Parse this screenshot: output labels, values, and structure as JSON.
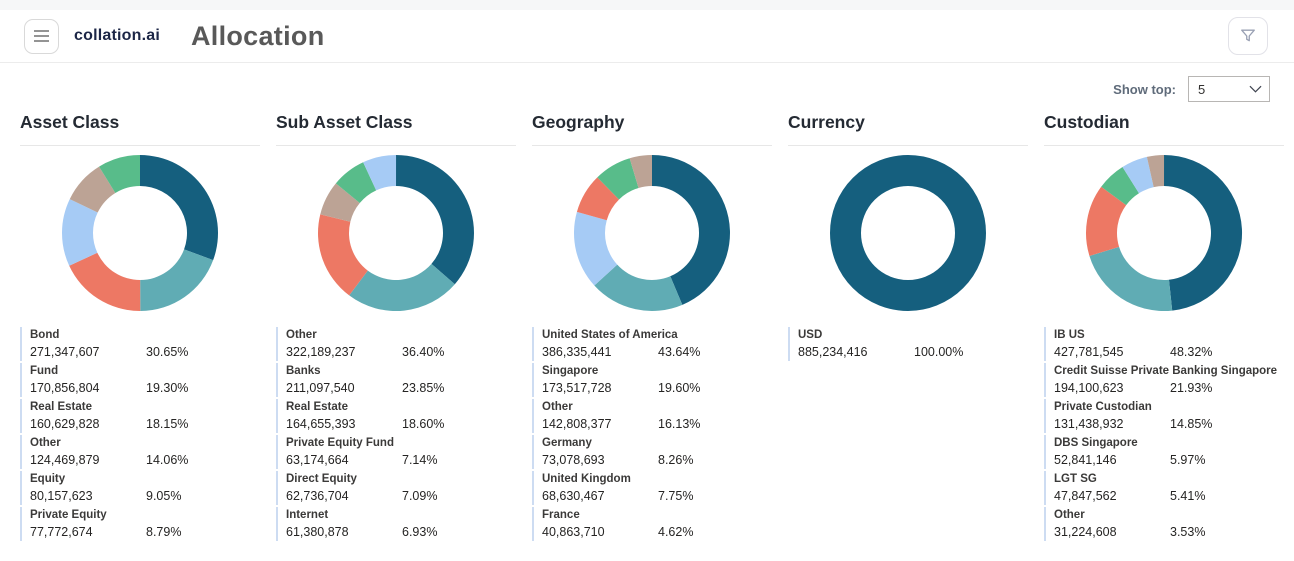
{
  "header": {
    "logo": "collation.ai",
    "title": "Allocation"
  },
  "icons": {
    "menu": "hamburger",
    "filter": "funnel",
    "dropdown": "chevron-down"
  },
  "controls": {
    "show_top_label": "Show top:",
    "show_top_value": "5"
  },
  "palette": {
    "dark_blue": "#155F7E",
    "teal": "#60ACB4",
    "salmon": "#ED7864",
    "light_blue": "#A6CBF5",
    "tan": "#BCA395",
    "green": "#58BC8A"
  },
  "chart_data": [
    {
      "type": "pie",
      "title": "Asset Class",
      "hole_ratio": 0.6,
      "start_angle": "top",
      "direction": "clockwise",
      "legend_position": "below-as-table",
      "series": [
        {
          "label": "Bond",
          "value": "271,347,607",
          "pct": 30.65,
          "pct_label": "30.65%",
          "color": "#155F7E"
        },
        {
          "label": "Fund",
          "value": "170,856,804",
          "pct": 19.3,
          "pct_label": "19.30%",
          "color": "#60ACB4"
        },
        {
          "label": "Real Estate",
          "value": "160,629,828",
          "pct": 18.15,
          "pct_label": "18.15%",
          "color": "#ED7864"
        },
        {
          "label": "Other",
          "value": "124,469,879",
          "pct": 14.06,
          "pct_label": "14.06%",
          "color": "#A6CBF5"
        },
        {
          "label": "Equity",
          "value": "80,157,623",
          "pct": 9.05,
          "pct_label": "9.05%",
          "color": "#BCA395"
        },
        {
          "label": "Private Equity",
          "value": "77,772,674",
          "pct": 8.79,
          "pct_label": "8.79%",
          "color": "#58BC8A"
        }
      ]
    },
    {
      "type": "pie",
      "title": "Sub Asset Class",
      "hole_ratio": 0.6,
      "start_angle": "top",
      "direction": "clockwise",
      "legend_position": "below-as-table",
      "series": [
        {
          "label": "Other",
          "value": "322,189,237",
          "pct": 36.4,
          "pct_label": "36.40%",
          "color": "#155F7E"
        },
        {
          "label": "Banks",
          "value": "211,097,540",
          "pct": 23.85,
          "pct_label": "23.85%",
          "color": "#60ACB4"
        },
        {
          "label": "Real Estate",
          "value": "164,655,393",
          "pct": 18.6,
          "pct_label": "18.60%",
          "color": "#ED7864"
        },
        {
          "label": "Private Equity Fund",
          "value": "63,174,664",
          "pct": 7.14,
          "pct_label": "7.14%",
          "color": "#BCA395"
        },
        {
          "label": "Direct Equity",
          "value": "62,736,704",
          "pct": 7.09,
          "pct_label": "7.09%",
          "color": "#58BC8A"
        },
        {
          "label": "Internet",
          "value": "61,380,878",
          "pct": 6.93,
          "pct_label": "6.93%",
          "color": "#A6CBF5"
        }
      ]
    },
    {
      "type": "pie",
      "title": "Geography",
      "hole_ratio": 0.6,
      "start_angle": "top",
      "direction": "clockwise",
      "legend_position": "below-as-table",
      "series": [
        {
          "label": "United States of America",
          "value": "386,335,441",
          "pct": 43.64,
          "pct_label": "43.64%",
          "color": "#155F7E"
        },
        {
          "label": "Singapore",
          "value": "173,517,728",
          "pct": 19.6,
          "pct_label": "19.60%",
          "color": "#60ACB4"
        },
        {
          "label": "Other",
          "value": "142,808,377",
          "pct": 16.13,
          "pct_label": "16.13%",
          "color": "#A6CBF5"
        },
        {
          "label": "Germany",
          "value": "73,078,693",
          "pct": 8.26,
          "pct_label": "8.26%",
          "color": "#ED7864"
        },
        {
          "label": "United Kingdom",
          "value": "68,630,467",
          "pct": 7.75,
          "pct_label": "7.75%",
          "color": "#58BC8A"
        },
        {
          "label": "France",
          "value": "40,863,710",
          "pct": 4.62,
          "pct_label": "4.62%",
          "color": "#BCA395"
        }
      ]
    },
    {
      "type": "pie",
      "title": "Currency",
      "hole_ratio": 0.6,
      "start_angle": "top",
      "direction": "clockwise",
      "legend_position": "below-as-table",
      "series": [
        {
          "label": "USD",
          "value": "885,234,416",
          "pct": 100.0,
          "pct_label": "100.00%",
          "color": "#155F7E"
        }
      ]
    },
    {
      "type": "pie",
      "title": "Custodian",
      "hole_ratio": 0.6,
      "start_angle": "top",
      "direction": "clockwise",
      "legend_position": "below-as-table",
      "series": [
        {
          "label": "IB US",
          "value": "427,781,545",
          "pct": 48.32,
          "pct_label": "48.32%",
          "color": "#155F7E"
        },
        {
          "label": "Credit Suisse Private Banking Singapore",
          "value": "194,100,623",
          "pct": 21.93,
          "pct_label": "21.93%",
          "color": "#60ACB4"
        },
        {
          "label": "Private Custodian",
          "value": "131,438,932",
          "pct": 14.85,
          "pct_label": "14.85%",
          "color": "#ED7864"
        },
        {
          "label": "DBS Singapore",
          "value": "52,841,146",
          "pct": 5.97,
          "pct_label": "5.97%",
          "color": "#58BC8A"
        },
        {
          "label": "LGT SG",
          "value": "47,847,562",
          "pct": 5.41,
          "pct_label": "5.41%",
          "color": "#A6CBF5"
        },
        {
          "label": "Other",
          "value": "31,224,608",
          "pct": 3.53,
          "pct_label": "3.53%",
          "color": "#BCA395"
        }
      ]
    }
  ]
}
